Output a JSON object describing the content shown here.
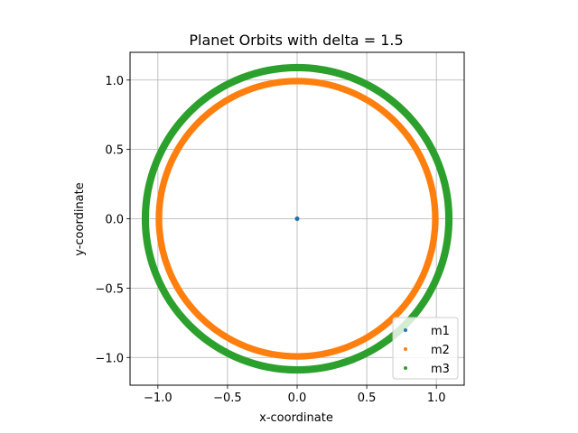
{
  "chart_data": {
    "type": "scatter",
    "title": "Planet Orbits with delta = 1.5",
    "xlabel": "x-coordinate",
    "ylabel": "y-coordinate",
    "xlim": [
      -1.2,
      1.2
    ],
    "ylim": [
      -1.2,
      1.2
    ],
    "xticks": [
      -1.0,
      -0.5,
      0.0,
      0.5,
      1.0
    ],
    "yticks": [
      -1.0,
      -0.5,
      0.0,
      0.5,
      1.0
    ],
    "xtick_labels": [
      "−1.0",
      "−0.5",
      "0.0",
      "0.5",
      "1.0"
    ],
    "ytick_labels": [
      "−1.0",
      "−0.5",
      "0.0",
      "0.5",
      "1.0"
    ],
    "grid": true,
    "legend_position": "lower right",
    "series": [
      {
        "name": "m1",
        "color": "#1f77b4",
        "points": [
          [
            0.0,
            0.0
          ]
        ]
      },
      {
        "name": "m2",
        "color": "#ff7f0e",
        "orbit": {
          "center": [
            0.0,
            0.0
          ],
          "radius_min": 0.985,
          "radius_max": 1.0
        }
      },
      {
        "name": "m3",
        "color": "#2ca02c",
        "orbit": {
          "center": [
            0.0,
            0.0
          ],
          "radius_min": 1.08,
          "radius_max": 1.1
        }
      }
    ]
  }
}
